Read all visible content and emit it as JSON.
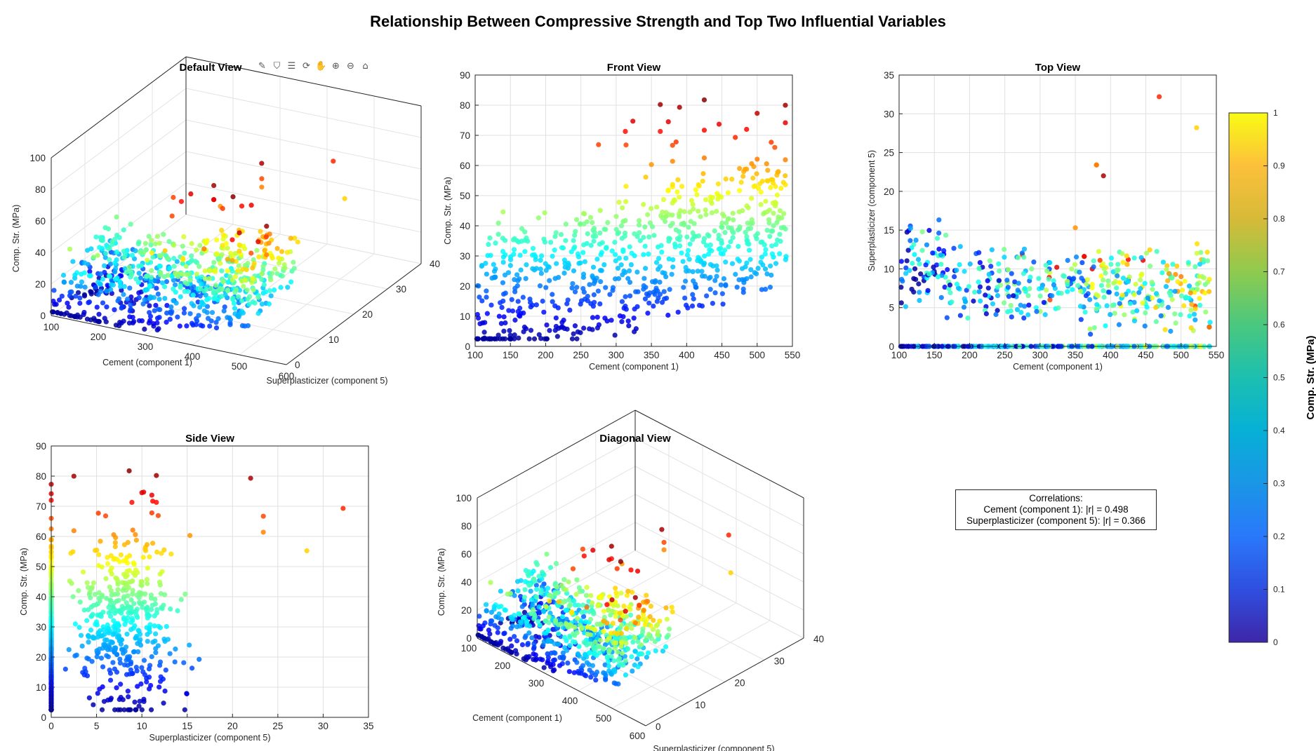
{
  "figure": {
    "title": "Relationship Between Compressive Strength and Top Two Influential Variables"
  },
  "toolbar": {
    "icons": [
      "brush-icon",
      "datatip-icon",
      "legend-icon",
      "rotate-icon",
      "pan-icon",
      "zoom-in-icon",
      "zoom-out-icon",
      "home-icon"
    ],
    "glyphs": [
      "✎",
      "⛉",
      "☰",
      "⟳",
      "✋",
      "⊕",
      "⊖",
      "⌂"
    ]
  },
  "correlations": {
    "heading": "Correlations:",
    "line1": "Cement (component 1): |r| = 0.498",
    "line2": "Superplasticizer (component 5): |r| = 0.366"
  },
  "chart_data": [
    {
      "id": "default",
      "type": "scatter3d",
      "title": "Default View",
      "xlabel": "Cement (component 1)",
      "ylabel": "Superplasticizer (component 5)",
      "zlabel": "Comp. Str. (MPa)",
      "xlim": [
        100,
        600
      ],
      "ylim": [
        0,
        40
      ],
      "zlim": [
        0,
        100
      ],
      "xticks": [
        100,
        200,
        300,
        400,
        500,
        600
      ],
      "yticks": [
        0,
        10,
        20,
        30,
        40
      ],
      "zticks": [
        0,
        20,
        40,
        60,
        80,
        100
      ],
      "grid": true
    },
    {
      "id": "front",
      "type": "scatter",
      "title": "Front View",
      "xlabel": "Cement (component 1)",
      "ylabel": "Comp. Str. (MPa)",
      "xlim": [
        100,
        550
      ],
      "ylim": [
        0,
        90
      ],
      "xticks": [
        100,
        150,
        200,
        250,
        300,
        350,
        400,
        450,
        500,
        550
      ],
      "yticks": [
        0,
        10,
        20,
        30,
        40,
        50,
        60,
        70,
        80,
        90
      ],
      "grid": true
    },
    {
      "id": "top",
      "type": "scatter",
      "title": "Top View",
      "xlabel": "Cement (component 1)",
      "ylabel": "Superplasticizer (component 5)",
      "xlim": [
        100,
        550
      ],
      "ylim": [
        0,
        35
      ],
      "xticks": [
        100,
        150,
        200,
        250,
        300,
        350,
        400,
        450,
        500,
        550
      ],
      "yticks": [
        0,
        5,
        10,
        15,
        20,
        25,
        30,
        35
      ],
      "grid": true
    },
    {
      "id": "side",
      "type": "scatter",
      "title": "Side View",
      "xlabel": "Superplasticizer (component 5)",
      "ylabel": "Comp. Str. (MPa)",
      "xlim": [
        0,
        35
      ],
      "ylim": [
        0,
        90
      ],
      "xticks": [
        0,
        5,
        10,
        15,
        20,
        25,
        30,
        35
      ],
      "yticks": [
        0,
        10,
        20,
        30,
        40,
        50,
        60,
        70,
        80,
        90
      ],
      "grid": true
    },
    {
      "id": "diagonal",
      "type": "scatter3d",
      "title": "Diagonal View",
      "xlabel": "Cement (component 1)",
      "ylabel": "Superplasticizer (component 5)",
      "zlabel": "Comp. Str. (MPa)",
      "xlim": [
        100,
        600
      ],
      "ylim": [
        0,
        40
      ],
      "zlim": [
        0,
        100
      ],
      "xticks": [
        100,
        200,
        300,
        400,
        500,
        600
      ],
      "yticks": [
        0,
        10,
        20,
        30,
        40
      ],
      "zticks": [
        0,
        20,
        40,
        60,
        80,
        100
      ],
      "grid": true
    }
  ],
  "points": [
    {
      "cement": 540,
      "sp": 2.5,
      "str": 79.99
    },
    {
      "cement": 540,
      "sp": 2.5,
      "str": 61.89
    },
    {
      "cement": 332.5,
      "sp": 0,
      "str": 40.27
    },
    {
      "cement": 198.6,
      "sp": 0,
      "str": 44.3
    },
    {
      "cement": 380,
      "sp": 0,
      "str": 52.91
    },
    {
      "cement": 475,
      "sp": 0,
      "str": 39.0
    },
    {
      "cement": 266,
      "sp": 0,
      "str": 41.05
    },
    {
      "cement": 427.5,
      "sp": 0,
      "str": 43.7
    },
    {
      "cement": 190,
      "sp": 0,
      "str": 42.62
    },
    {
      "cement": 304,
      "sp": 0,
      "str": 47.81
    },
    {
      "cement": 139.6,
      "sp": 0,
      "str": 44.61
    },
    {
      "cement": 342,
      "sp": 0,
      "str": 56.14
    },
    {
      "cement": 380,
      "sp": 0,
      "str": 53.69
    },
    {
      "cement": 485,
      "sp": 0,
      "str": 71.99
    },
    {
      "cement": 375,
      "sp": 0,
      "str": 43.7
    },
    {
      "cement": 500,
      "sp": 0,
      "str": 77.3
    },
    {
      "cement": 475,
      "sp": 0,
      "str": 59.0
    },
    {
      "cement": 540,
      "sp": 0,
      "str": 74.17
    },
    {
      "cement": 160,
      "sp": 6.3,
      "str": 20.08
    },
    {
      "cement": 525,
      "sp": 0,
      "str": 66.0
    },
    {
      "cement": 425,
      "sp": 0,
      "str": 62.5
    },
    {
      "cement": 310,
      "sp": 0,
      "str": 9.87
    },
    {
      "cement": 331,
      "sp": 0,
      "str": 18.13
    },
    {
      "cement": 168,
      "sp": 3.7,
      "str": 16.28
    },
    {
      "cement": 485,
      "sp": 0,
      "str": 58.8
    },
    {
      "cement": 374,
      "sp": 10.0,
      "str": 74.5
    },
    {
      "cement": 313,
      "sp": 8.9,
      "str": 71.3
    },
    {
      "cement": 425,
      "sp": 11.2,
      "str": 71.7
    },
    {
      "cement": 375,
      "sp": 0,
      "str": 29.0
    },
    {
      "cement": 475,
      "sp": 0,
      "str": 51.7
    },
    {
      "cement": 469,
      "sp": 32.2,
      "str": 69.3
    },
    {
      "cement": 425,
      "sp": 8.6,
      "str": 81.75
    },
    {
      "cement": 389.9,
      "sp": 22.0,
      "str": 79.3
    },
    {
      "cement": 362.6,
      "sp": 11.6,
      "str": 80.2
    },
    {
      "cement": 362.6,
      "sp": 11.6,
      "str": 71.3
    },
    {
      "cement": 323.7,
      "sp": 10.2,
      "str": 74.7
    },
    {
      "cement": 446,
      "sp": 11.1,
      "str": 73.7
    },
    {
      "cement": 385,
      "sp": 11.1,
      "str": 67.8
    },
    {
      "cement": 520,
      "sp": 5.2,
      "str": 67.7
    },
    {
      "cement": 314,
      "sp": 6.0,
      "str": 66.8
    },
    {
      "cement": 314,
      "sp": 0,
      "str": 53.1
    },
    {
      "cement": 500,
      "sp": 9.0,
      "str": 62.1
    },
    {
      "cement": 522,
      "sp": 28.2,
      "str": 55.25
    },
    {
      "cement": 275,
      "sp": 11.8,
      "str": 66.9
    },
    {
      "cement": 480,
      "sp": 10.4,
      "str": 56.4
    },
    {
      "cement": 528,
      "sp": 0,
      "str": 56.8
    },
    {
      "cement": 530,
      "sp": 9.0,
      "str": 42.1
    },
    {
      "cement": 380,
      "sp": 23.4,
      "str": 66.7
    },
    {
      "cement": 380,
      "sp": 23.4,
      "str": 61.4
    },
    {
      "cement": 350,
      "sp": 15.3,
      "str": 60.3
    },
    {
      "cement": 491,
      "sp": 4.2,
      "str": 40.8
    }
  ]
}
